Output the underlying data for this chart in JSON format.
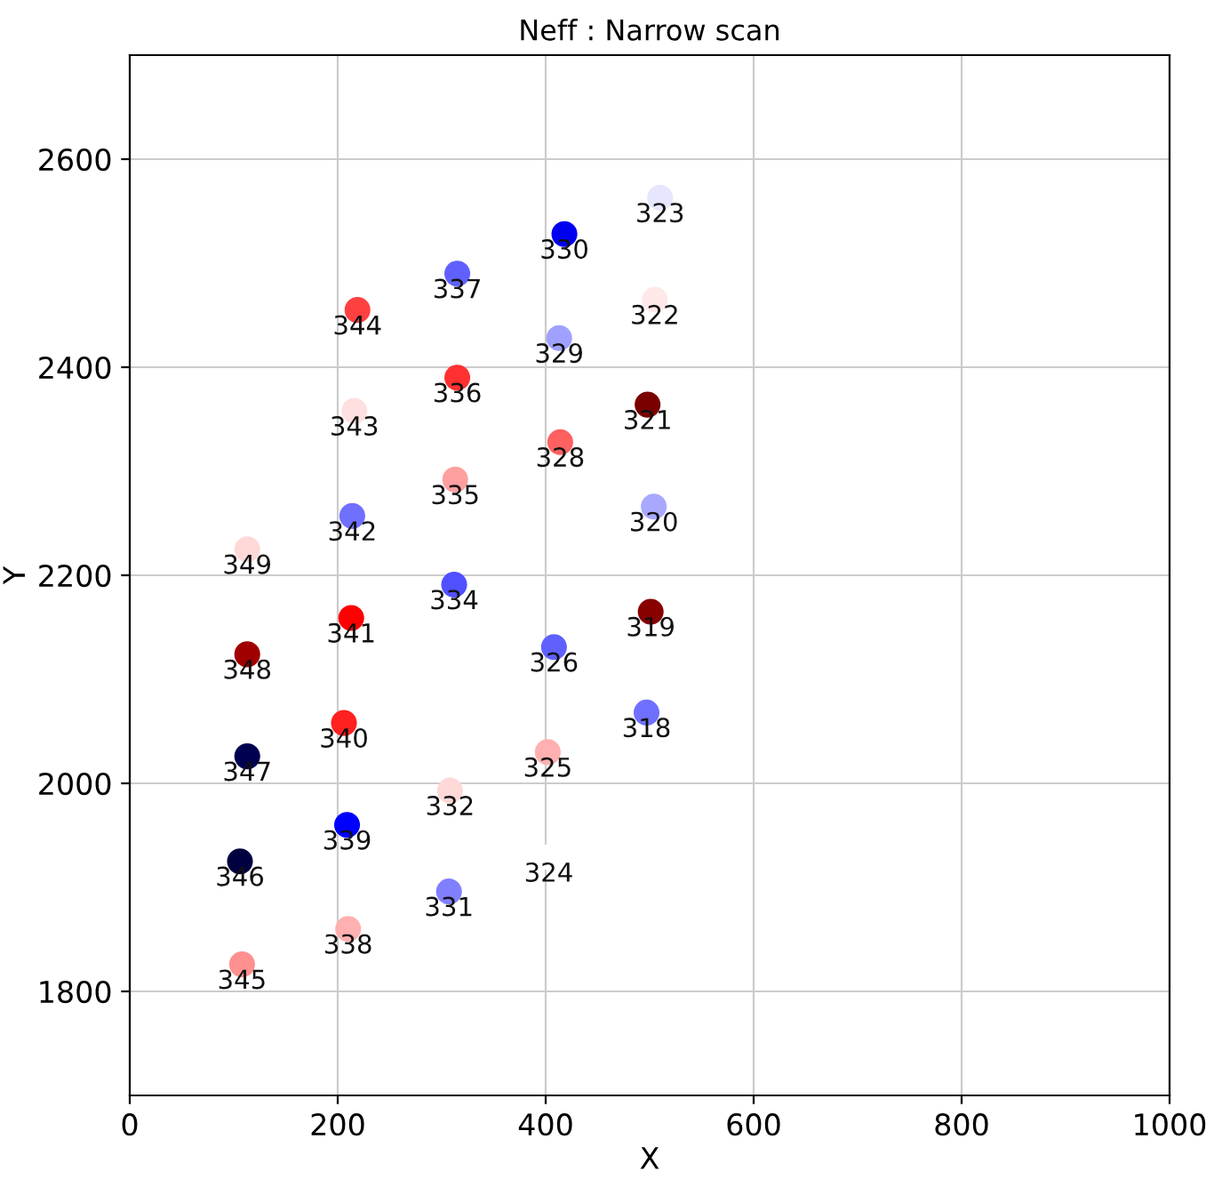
{
  "chart_data": {
    "type": "scatter",
    "title": "Neff : Narrow scan",
    "xlabel": "X",
    "ylabel": "Y",
    "x": [
      510,
      418,
      315,
      219,
      505,
      413,
      315,
      216,
      498,
      414,
      313,
      214,
      504,
      113,
      312,
      213,
      501,
      113,
      408,
      497,
      206,
      113,
      402,
      308,
      209,
      106,
      307,
      210,
      108,
      403
    ],
    "values": [
      2563,
      2528,
      2490,
      2455,
      2465,
      2428,
      2390,
      2358,
      2364,
      2328,
      2292,
      2257,
      2266,
      2225,
      2191,
      2159,
      2165,
      2124,
      2131,
      2068,
      2058,
      2026,
      2030,
      1993,
      1960,
      1925,
      1896,
      1860,
      1826,
      1929
    ],
    "colors": [
      "#e6e6ff",
      "#0000f0",
      "#6060ff",
      "#ff4040",
      "#ffe8e8",
      "#a0a0ff",
      "#ff3030",
      "#ffe0e0",
      "#7a0000",
      "#ff6060",
      "#ffa0a0",
      "#7070ff",
      "#a8a8ff",
      "#ffd8d8",
      "#5050ff",
      "#ff0000",
      "#880000",
      "#a00000",
      "#6060ff",
      "#7070ff",
      "#ff2020",
      "#000050",
      "#ffb0b0",
      "#ffd8d8",
      "#0000ff",
      "#000040",
      "#8080ff",
      "#ffb0b0",
      "#ff9090",
      "#ffffff"
    ],
    "annotations": [
      {
        "text": "323",
        "x": 510,
        "y": 2563
      },
      {
        "text": "330",
        "x": 418,
        "y": 2528
      },
      {
        "text": "337",
        "x": 315,
        "y": 2490
      },
      {
        "text": "344",
        "x": 219,
        "y": 2455
      },
      {
        "text": "322",
        "x": 505,
        "y": 2465
      },
      {
        "text": "329",
        "x": 413,
        "y": 2428
      },
      {
        "text": "336",
        "x": 315,
        "y": 2390
      },
      {
        "text": "343",
        "x": 216,
        "y": 2358
      },
      {
        "text": "321",
        "x": 498,
        "y": 2364
      },
      {
        "text": "328",
        "x": 414,
        "y": 2328
      },
      {
        "text": "335",
        "x": 313,
        "y": 2292
      },
      {
        "text": "342",
        "x": 214,
        "y": 2257
      },
      {
        "text": "320",
        "x": 504,
        "y": 2266
      },
      {
        "text": "349",
        "x": 113,
        "y": 2225
      },
      {
        "text": "334",
        "x": 312,
        "y": 2191
      },
      {
        "text": "341",
        "x": 213,
        "y": 2159
      },
      {
        "text": "319",
        "x": 501,
        "y": 2165
      },
      {
        "text": "348",
        "x": 113,
        "y": 2124
      },
      {
        "text": "326",
        "x": 408,
        "y": 2131
      },
      {
        "text": "318",
        "x": 497,
        "y": 2068
      },
      {
        "text": "340",
        "x": 206,
        "y": 2058
      },
      {
        "text": "347",
        "x": 113,
        "y": 2026
      },
      {
        "text": "325",
        "x": 402,
        "y": 2030
      },
      {
        "text": "332",
        "x": 308,
        "y": 1993
      },
      {
        "text": "339",
        "x": 209,
        "y": 1960
      },
      {
        "text": "346",
        "x": 106,
        "y": 1925
      },
      {
        "text": "331",
        "x": 307,
        "y": 1896
      },
      {
        "text": "338",
        "x": 210,
        "y": 1860
      },
      {
        "text": "345",
        "x": 108,
        "y": 1826
      },
      {
        "text": "324",
        "x": 403,
        "y": 1929
      }
    ],
    "xlim": [
      0,
      1000
    ],
    "ylim": [
      1700,
      2700
    ],
    "xticks": [
      0,
      200,
      400,
      600,
      800,
      1000
    ],
    "yticks": [
      1800,
      2000,
      2200,
      2400,
      2600
    ],
    "grid": true,
    "marker": "circle"
  }
}
